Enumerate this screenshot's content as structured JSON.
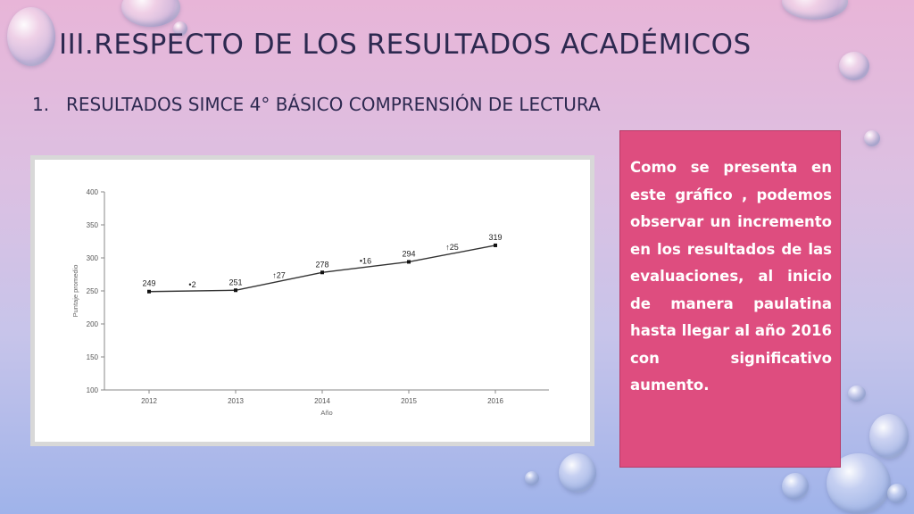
{
  "slide": {
    "title": "III.RESPECTO DE LOS RESULTADOS ACADÉMICOS",
    "subtitle_number": "1.",
    "subtitle": "RESULTADOS SIMCE 4° BÁSICO COMPRENSIÓN DE LECTURA",
    "note": "Como se presenta en este gráfico , podemos observar un incremento en los resultados de las evaluaciones, al inicio de manera paulatina hasta llegar al año 2016 con significativo aumento."
  },
  "colors": {
    "note_bg": "#de4d7f",
    "title_text": "#2d2950",
    "line": "#333333"
  },
  "chart_data": {
    "type": "line",
    "categories": [
      "2012",
      "2013",
      "2014",
      "2015",
      "2016"
    ],
    "values": [
      249,
      251,
      278,
      294,
      319
    ],
    "value_labels": [
      "249",
      "251",
      "278",
      "294",
      "319"
    ],
    "changes": [
      {
        "between": [
          0,
          1
        ],
        "label": "2",
        "marker": "•"
      },
      {
        "between": [
          1,
          2
        ],
        "label": "27",
        "marker": "↑"
      },
      {
        "between": [
          2,
          3
        ],
        "label": "16",
        "marker": "•"
      },
      {
        "between": [
          3,
          4
        ],
        "label": "25",
        "marker": "↑"
      }
    ],
    "xlabel": "Año",
    "ylabel": "Puntaje promedio",
    "ylim": [
      100,
      400
    ],
    "yticks": [
      100,
      150,
      200,
      250,
      300,
      350,
      400
    ],
    "grid": false
  }
}
